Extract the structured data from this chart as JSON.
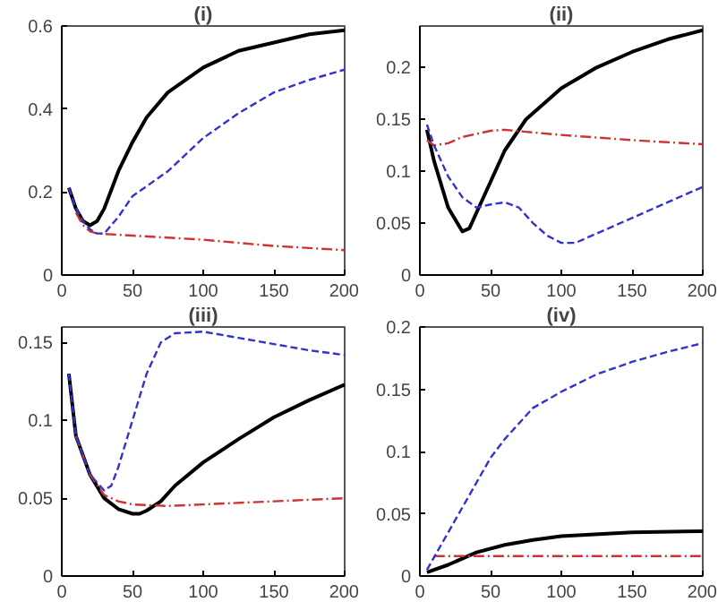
{
  "chart_data": [
    {
      "type": "line",
      "title": "(i)",
      "xlim": [
        0,
        200
      ],
      "xticks": [
        0,
        50,
        100,
        150,
        200
      ],
      "ylim": [
        0,
        0.6
      ],
      "yticks": [
        0,
        0.2,
        0.4,
        0.6
      ],
      "grid": false,
      "series": [
        {
          "color": "#000000",
          "line_style": "solid",
          "x": [
            5,
            10,
            15,
            20,
            25,
            30,
            40,
            50,
            60,
            75,
            100,
            125,
            150,
            175,
            200
          ],
          "values": [
            0.21,
            0.16,
            0.13,
            0.12,
            0.13,
            0.16,
            0.25,
            0.32,
            0.38,
            0.44,
            0.5,
            0.54,
            0.56,
            0.58,
            0.59
          ]
        },
        {
          "color": "#3333cc",
          "line_style": "dashed",
          "x": [
            5,
            10,
            15,
            20,
            25,
            30,
            40,
            50,
            75,
            100,
            125,
            150,
            175,
            200
          ],
          "values": [
            0.21,
            0.16,
            0.13,
            0.11,
            0.1,
            0.1,
            0.14,
            0.19,
            0.25,
            0.33,
            0.39,
            0.44,
            0.47,
            0.495
          ]
        },
        {
          "color": "#cc3333",
          "line_style": "dashdot",
          "x": [
            10,
            15,
            20,
            25,
            50,
            100,
            150,
            200
          ],
          "values": [
            0.15,
            0.12,
            0.105,
            0.1,
            0.095,
            0.085,
            0.07,
            0.06
          ]
        }
      ]
    },
    {
      "type": "line",
      "title": "(ii)",
      "xlim": [
        0,
        200
      ],
      "xticks": [
        0,
        50,
        100,
        150,
        200
      ],
      "ylim": [
        0,
        0.24
      ],
      "yticks": [
        0,
        0.05,
        0.1,
        0.15,
        0.2
      ],
      "grid": false,
      "series": [
        {
          "color": "#000000",
          "line_style": "solid",
          "x": [
            5,
            10,
            20,
            30,
            35,
            40,
            50,
            60,
            75,
            100,
            125,
            150,
            175,
            200
          ],
          "values": [
            0.14,
            0.11,
            0.065,
            0.042,
            0.045,
            0.06,
            0.09,
            0.12,
            0.15,
            0.18,
            0.2,
            0.215,
            0.227,
            0.236
          ]
        },
        {
          "color": "#3333cc",
          "line_style": "dashed",
          "x": [
            5,
            10,
            20,
            30,
            40,
            50,
            60,
            70,
            80,
            90,
            100,
            110,
            125,
            150,
            175,
            200
          ],
          "values": [
            0.145,
            0.125,
            0.095,
            0.075,
            0.065,
            0.068,
            0.07,
            0.065,
            0.05,
            0.038,
            0.031,
            0.031,
            0.04,
            0.055,
            0.07,
            0.085
          ]
        },
        {
          "color": "#cc3333",
          "line_style": "dashdot",
          "x": [
            5,
            10,
            20,
            30,
            50,
            60,
            75,
            100,
            150,
            200
          ],
          "values": [
            0.13,
            0.125,
            0.127,
            0.133,
            0.139,
            0.14,
            0.138,
            0.135,
            0.13,
            0.126
          ]
        }
      ]
    },
    {
      "type": "line",
      "title": "(iii)",
      "xlim": [
        0,
        200
      ],
      "xticks": [
        0,
        50,
        100,
        150,
        200
      ],
      "ylim": [
        0,
        0.16
      ],
      "yticks": [
        0,
        0.05,
        0.1,
        0.15
      ],
      "grid": false,
      "series": [
        {
          "color": "#000000",
          "line_style": "solid",
          "x": [
            5,
            10,
            20,
            30,
            40,
            50,
            55,
            60,
            70,
            80,
            100,
            125,
            150,
            175,
            200
          ],
          "values": [
            0.13,
            0.09,
            0.065,
            0.05,
            0.043,
            0.04,
            0.04,
            0.042,
            0.048,
            0.058,
            0.073,
            0.088,
            0.102,
            0.113,
            0.123
          ]
        },
        {
          "color": "#3333cc",
          "line_style": "dashed",
          "x": [
            5,
            10,
            20,
            30,
            35,
            40,
            50,
            60,
            70,
            80,
            100,
            125,
            150,
            175,
            200
          ],
          "values": [
            0.13,
            0.09,
            0.065,
            0.055,
            0.058,
            0.07,
            0.1,
            0.13,
            0.15,
            0.156,
            0.157,
            0.153,
            0.149,
            0.145,
            0.142
          ]
        },
        {
          "color": "#cc3333",
          "line_style": "dashdot",
          "x": [
            10,
            20,
            30,
            40,
            50,
            75,
            100,
            150,
            200
          ],
          "values": [
            0.09,
            0.065,
            0.052,
            0.048,
            0.046,
            0.045,
            0.046,
            0.048,
            0.05
          ]
        }
      ]
    },
    {
      "type": "line",
      "title": "(iv)",
      "xlim": [
        0,
        200
      ],
      "xticks": [
        0,
        50,
        100,
        150,
        200
      ],
      "ylim": [
        0,
        0.2
      ],
      "yticks": [
        0,
        0.05,
        0.1,
        0.15,
        0.2
      ],
      "grid": false,
      "series": [
        {
          "color": "#000000",
          "line_style": "solid",
          "x": [
            5,
            20,
            40,
            60,
            80,
            100,
            150,
            200
          ],
          "values": [
            0.003,
            0.009,
            0.019,
            0.025,
            0.029,
            0.032,
            0.035,
            0.036
          ]
        },
        {
          "color": "#3333cc",
          "line_style": "dashed",
          "x": [
            5,
            20,
            40,
            50,
            60,
            80,
            100,
            125,
            150,
            175,
            200
          ],
          "values": [
            0.005,
            0.035,
            0.075,
            0.095,
            0.11,
            0.135,
            0.148,
            0.162,
            0.172,
            0.18,
            0.187
          ]
        },
        {
          "color": "#cc3333",
          "line_style": "dashdot",
          "x": [
            10,
            200
          ],
          "values": [
            0.016,
            0.016
          ]
        }
      ]
    }
  ]
}
